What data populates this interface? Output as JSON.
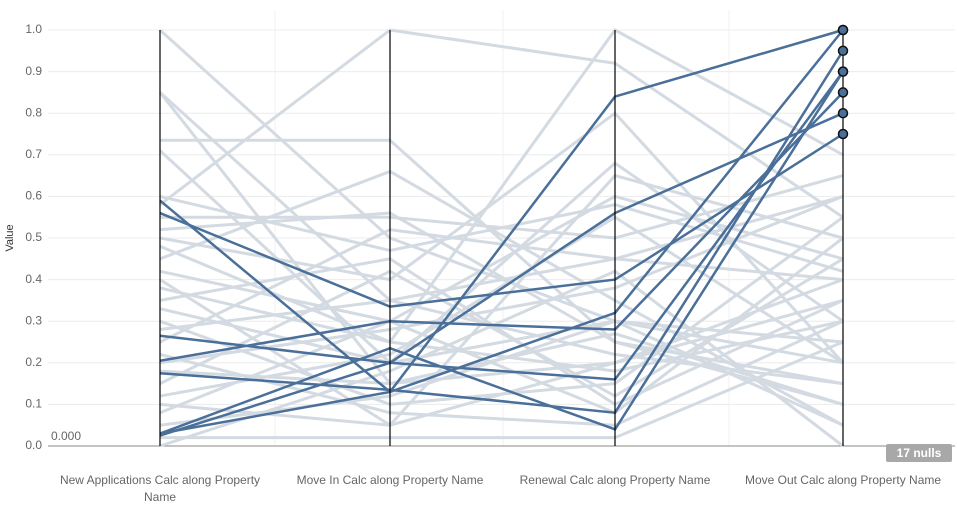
{
  "chart_data": {
    "type": "parallel-coordinates",
    "y_label": "Value",
    "annotation": "0.000",
    "nulls_label": "17 nulls",
    "categories": [
      "New Applications Calc along Property Name",
      "Move In Calc along Property Name",
      "Renewal Calc along Property Name",
      "Move Out Calc along Property Name"
    ],
    "ylim": [
      0,
      1.05
    ],
    "yticks": [
      {
        "value": 0,
        "label": "0.0"
      },
      0.1,
      0.2,
      0.3,
      0.4,
      0.5,
      0.6,
      0.7,
      0.8,
      0.9,
      {
        "value": 1,
        "label": "1.0"
      }
    ],
    "grid": true,
    "series": [
      {
        "color": "#d3dae2",
        "values": [
          1.0,
          0.5,
          0.3,
          0.2
        ]
      },
      {
        "color": "#d3dae2",
        "values": [
          0.85,
          0.35,
          0.45,
          0.6
        ]
      },
      {
        "color": "#d3dae2",
        "values": [
          0.85,
          0.15,
          0.2,
          0.4
        ]
      },
      {
        "color": "#d3dae2",
        "values": [
          0.735,
          0.735,
          0.25,
          0.1
        ]
      },
      {
        "color": "#d3dae2",
        "values": [
          0.71,
          0.2,
          0.68,
          0.3
        ]
      },
      {
        "color": "#d3dae2",
        "values": [
          0.58,
          1.0,
          0.92,
          0.55
        ]
      },
      {
        "color": "#d3dae2",
        "values": [
          0.55,
          0.55,
          0.5,
          0.65
        ]
      },
      {
        "color": "#d3dae2",
        "values": [
          0.5,
          0.4,
          0.8,
          0.2
        ]
      },
      {
        "color": "#d3dae2",
        "values": [
          0.45,
          0.66,
          0.35,
          0.05
        ]
      },
      {
        "color": "#d3dae2",
        "values": [
          0.42,
          0.3,
          0.6,
          0.45
        ]
      },
      {
        "color": "#d3dae2",
        "values": [
          0.4,
          0.05,
          0.65,
          0.5
        ]
      },
      {
        "color": "#d3dae2",
        "values": [
          0.38,
          0.25,
          1.0,
          0.7
        ]
      },
      {
        "color": "#d3dae2",
        "values": [
          0.35,
          0.45,
          0.1,
          0.35
        ]
      },
      {
        "color": "#d3dae2",
        "values": [
          0.33,
          0.2,
          0.3,
          0.25
        ]
      },
      {
        "color": "#d3dae2",
        "values": [
          0.3,
          0.1,
          0.15,
          0.55
        ]
      },
      {
        "color": "#d3dae2",
        "values": [
          0.28,
          0.35,
          0.22,
          0.15
        ]
      },
      {
        "color": "#d3dae2",
        "values": [
          0.25,
          0.52,
          0.45,
          0.4
        ]
      },
      {
        "color": "#d3dae2",
        "values": [
          0.22,
          0.08,
          0.05,
          0.3
        ]
      },
      {
        "color": "#d3dae2",
        "values": [
          0.2,
          0.28,
          0.38,
          0.6
        ]
      },
      {
        "color": "#d3dae2",
        "values": [
          0.18,
          0.15,
          0.27,
          0.1
        ]
      },
      {
        "color": "#d3dae2",
        "values": [
          0.15,
          0.42,
          0.12,
          0.45
        ]
      },
      {
        "color": "#d3dae2",
        "values": [
          0.12,
          0.22,
          0.55,
          0.2
        ]
      },
      {
        "color": "#d3dae2",
        "values": [
          0.1,
          0.05,
          0.2,
          0.35
        ]
      },
      {
        "color": "#d3dae2",
        "values": [
          0.08,
          0.3,
          0.08,
          0.5
        ]
      },
      {
        "color": "#d3dae2",
        "values": [
          0.05,
          0.12,
          0.3,
          0.05
        ]
      },
      {
        "color": "#d3dae2",
        "values": [
          0.02,
          0.02,
          0.02,
          0.25
        ]
      },
      {
        "color": "#d3dae2",
        "values": [
          0.0,
          0.18,
          0.42,
          0.0
        ]
      },
      {
        "color": "#d3dae2",
        "values": [
          0.48,
          0.25,
          0.18,
          0.3
        ]
      },
      {
        "color": "#d3dae2",
        "values": [
          0.6,
          0.47,
          0.58,
          0.42
        ]
      },
      {
        "color": "#d3dae2",
        "values": [
          0.52,
          0.56,
          0.25,
          0.15
        ]
      },
      {
        "color": "#4a6f99",
        "values": [
          0.59,
          0.13,
          0.32,
          1.0
        ]
      },
      {
        "color": "#4a6f99",
        "values": [
          0.56,
          0.335,
          0.4,
          0.75
        ]
      },
      {
        "color": "#4a6f99",
        "values": [
          0.265,
          0.2,
          0.16,
          0.9
        ]
      },
      {
        "color": "#4a6f99",
        "values": [
          0.205,
          0.3,
          0.28,
          0.85
        ]
      },
      {
        "color": "#4a6f99",
        "values": [
          0.175,
          0.135,
          0.08,
          0.95
        ]
      },
      {
        "color": "#4a6f99",
        "values": [
          0.03,
          0.235,
          0.04,
          0.9
        ]
      },
      {
        "color": "#4a6f99",
        "values": [
          0.03,
          0.13,
          0.84,
          1.0
        ]
      },
      {
        "color": "#4a6f99",
        "values": [
          0.025,
          0.2,
          0.56,
          0.8
        ]
      }
    ]
  }
}
